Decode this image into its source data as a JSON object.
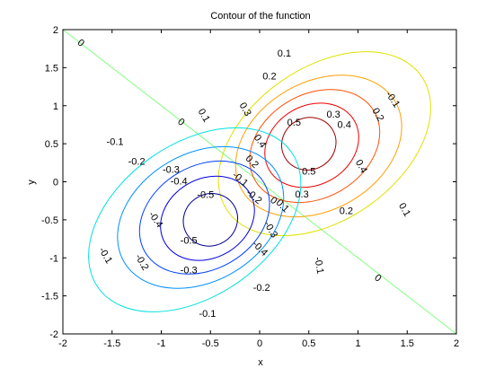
{
  "chart_data": {
    "type": "contour",
    "title": "Contour of the function",
    "xlabel": "x",
    "ylabel": "y",
    "xlim": [
      -2,
      2
    ],
    "ylim": [
      -2,
      2
    ],
    "xticks": [
      -2,
      -1.5,
      -1,
      -0.5,
      0,
      0.5,
      1,
      1.5,
      2
    ],
    "yticks": [
      -2,
      -1.5,
      -1,
      -0.5,
      0,
      0.5,
      1,
      1.5,
      2
    ],
    "xtick_labels": [
      "-2",
      "-1.5",
      "-1",
      "-0.5",
      "0",
      "0.5",
      "1",
      "1.5",
      "2"
    ],
    "ytick_labels": [
      "-2",
      "-1.5",
      "-1",
      "-0.5",
      "0",
      "0.5",
      "1",
      "1.5",
      "2"
    ],
    "grid": false,
    "levels": [
      {
        "value": -0.5,
        "label": "-0.5",
        "color": "#00008f"
      },
      {
        "value": -0.4,
        "label": "-0.4",
        "color": "#0000df"
      },
      {
        "value": -0.3,
        "label": "-0.3",
        "color": "#0040ff"
      },
      {
        "value": -0.2,
        "label": "-0.2",
        "color": "#0090ff"
      },
      {
        "value": -0.1,
        "label": "-0.1",
        "color": "#00e0e0"
      },
      {
        "value": 0,
        "label": "0",
        "color": "#80ff80"
      },
      {
        "value": 0.1,
        "label": "0.1",
        "color": "#e0e000"
      },
      {
        "value": 0.2,
        "label": "0.2",
        "color": "#ffa000"
      },
      {
        "value": 0.3,
        "label": "0.3",
        "color": "#ff5000"
      },
      {
        "value": 0.4,
        "label": "0.4",
        "color": "#ef0000"
      },
      {
        "value": 0.5,
        "label": "0.5",
        "color": "#a00000"
      }
    ],
    "zero_line": {
      "x": [
        -2,
        2
      ],
      "y": [
        2,
        -2
      ]
    },
    "contours": [
      {
        "level": 0.5,
        "cx": 0.5,
        "cy": 0.5,
        "rx": 0.28,
        "ry": 0.34,
        "rot": -30
      },
      {
        "level": 0.4,
        "cx": 0.53,
        "cy": 0.48,
        "rx": 0.5,
        "ry": 0.52,
        "rot": -30
      },
      {
        "level": 0.3,
        "cx": 0.56,
        "cy": 0.47,
        "rx": 0.7,
        "ry": 0.68,
        "rot": -30
      },
      {
        "level": 0.2,
        "cx": 0.6,
        "cy": 0.47,
        "rx": 0.9,
        "ry": 0.84,
        "rot": -30
      },
      {
        "level": 0.1,
        "cx": 0.66,
        "cy": 0.5,
        "rx": 1.2,
        "ry": 1.0,
        "rot": -35
      },
      {
        "level": -0.5,
        "cx": -0.5,
        "cy": -0.5,
        "rx": 0.28,
        "ry": 0.34,
        "rot": -30
      },
      {
        "level": -0.4,
        "cx": -0.53,
        "cy": -0.48,
        "rx": 0.5,
        "ry": 0.52,
        "rot": -30
      },
      {
        "level": -0.3,
        "cx": -0.56,
        "cy": -0.47,
        "rx": 0.7,
        "ry": 0.68,
        "rot": -30
      },
      {
        "level": -0.2,
        "cx": -0.6,
        "cy": -0.47,
        "rx": 0.9,
        "ry": 0.84,
        "rot": -30
      },
      {
        "level": -0.1,
        "cx": -0.66,
        "cy": -0.5,
        "rx": 1.2,
        "ry": 1.0,
        "rot": -35
      }
    ],
    "labels": [
      {
        "text": "0",
        "x": -1.82,
        "y": 1.82,
        "rot": 40
      },
      {
        "text": "0.1",
        "x": 0.25,
        "y": 1.68,
        "rot": 0
      },
      {
        "text": "0.2",
        "x": 0.1,
        "y": 1.38,
        "rot": 0
      },
      {
        "text": "-0.1",
        "x": 1.35,
        "y": 1.08,
        "rot": 55
      },
      {
        "text": "0.2",
        "x": 1.2,
        "y": 0.88,
        "rot": 60
      },
      {
        "text": "0.1",
        "x": -0.57,
        "y": 0.87,
        "rot": 60
      },
      {
        "text": "0",
        "x": -0.8,
        "y": 0.78,
        "rot": 40
      },
      {
        "text": "0.3",
        "x": -0.15,
        "y": 0.95,
        "rot": 60
      },
      {
        "text": "0.5",
        "x": 0.35,
        "y": 0.77,
        "rot": 0
      },
      {
        "text": "0.3",
        "x": 0.75,
        "y": 0.88,
        "rot": 0
      },
      {
        "text": "0.4",
        "x": 0.86,
        "y": 0.74,
        "rot": 0
      },
      {
        "text": "0.4",
        "x": 0.0,
        "y": 0.53,
        "rot": 55
      },
      {
        "text": "0.5",
        "x": 0.5,
        "y": 0.13,
        "rot": 0
      },
      {
        "text": "0.4",
        "x": 1.03,
        "y": 0.2,
        "rot": 60
      },
      {
        "text": "0.2",
        "x": -0.08,
        "y": 0.26,
        "rot": 45
      },
      {
        "text": "0.3",
        "x": 0.43,
        "y": -0.17,
        "rot": 0
      },
      {
        "text": "0.1",
        "x": 1.47,
        "y": -0.37,
        "rot": 60
      },
      {
        "text": "0.2",
        "x": 0.88,
        "y": -0.39,
        "rot": 0
      },
      {
        "text": "0.1",
        "x": 0.23,
        "y": -0.32,
        "rot": 45
      },
      {
        "text": "0",
        "x": 0.14,
        "y": -0.25,
        "rot": 40
      },
      {
        "text": "-0.1",
        "x": -1.47,
        "y": 0.52,
        "rot": 0
      },
      {
        "text": "-0.2",
        "x": -1.25,
        "y": 0.26,
        "rot": 0
      },
      {
        "text": "-0.3",
        "x": -0.9,
        "y": 0.15,
        "rot": 0
      },
      {
        "text": "-0.4",
        "x": -0.82,
        "y": 0.0,
        "rot": 0
      },
      {
        "text": "-0.1",
        "x": -0.2,
        "y": 0.03,
        "rot": 40
      },
      {
        "text": "-0.2",
        "x": -0.06,
        "y": -0.2,
        "rot": 40
      },
      {
        "text": "-0.5",
        "x": -0.55,
        "y": -0.18,
        "rot": 0
      },
      {
        "text": "-0.3",
        "x": 0.11,
        "y": -0.63,
        "rot": 60
      },
      {
        "text": "-0.4",
        "x": -1.06,
        "y": -0.5,
        "rot": 55
      },
      {
        "text": "-0.5",
        "x": -0.72,
        "y": -0.78,
        "rot": 0
      },
      {
        "text": "-0.4",
        "x": 0.0,
        "y": -0.88,
        "rot": 45
      },
      {
        "text": "-0.1",
        "x": -1.57,
        "y": -0.97,
        "rot": 60
      },
      {
        "text": "-0.2",
        "x": -1.2,
        "y": -1.06,
        "rot": 60
      },
      {
        "text": "-0.3",
        "x": -0.72,
        "y": -1.17,
        "rot": 0
      },
      {
        "text": "-0.1",
        "x": 0.6,
        "y": -1.1,
        "rot": 80
      },
      {
        "text": "-0.2",
        "x": 0.02,
        "y": -1.4,
        "rot": 0
      },
      {
        "text": "0",
        "x": 1.2,
        "y": -1.27,
        "rot": 40
      },
      {
        "text": "-0.1",
        "x": -0.53,
        "y": -1.74,
        "rot": 0
      }
    ]
  }
}
